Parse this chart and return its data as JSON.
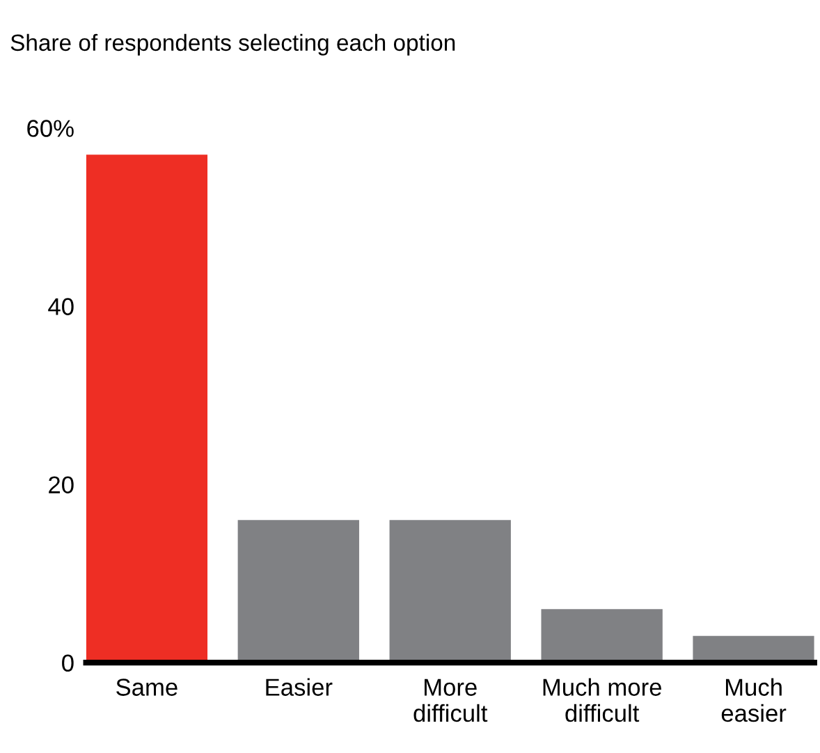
{
  "chart_data": {
    "type": "bar",
    "title": "Share of respondents selecting each option",
    "categories": [
      "Same",
      "Easier",
      "More\ndifficult",
      "Much more\ndifficult",
      "Much\neasier"
    ],
    "values": [
      57,
      16,
      16,
      6,
      3
    ],
    "colors": [
      "#ee2e24",
      "#808184",
      "#808184",
      "#808184",
      "#808184"
    ],
    "ylim": [
      0,
      60
    ],
    "yticks": [
      0,
      20,
      40,
      {
        "value": 60,
        "label": "60%"
      }
    ],
    "grid": false,
    "legend": false
  }
}
